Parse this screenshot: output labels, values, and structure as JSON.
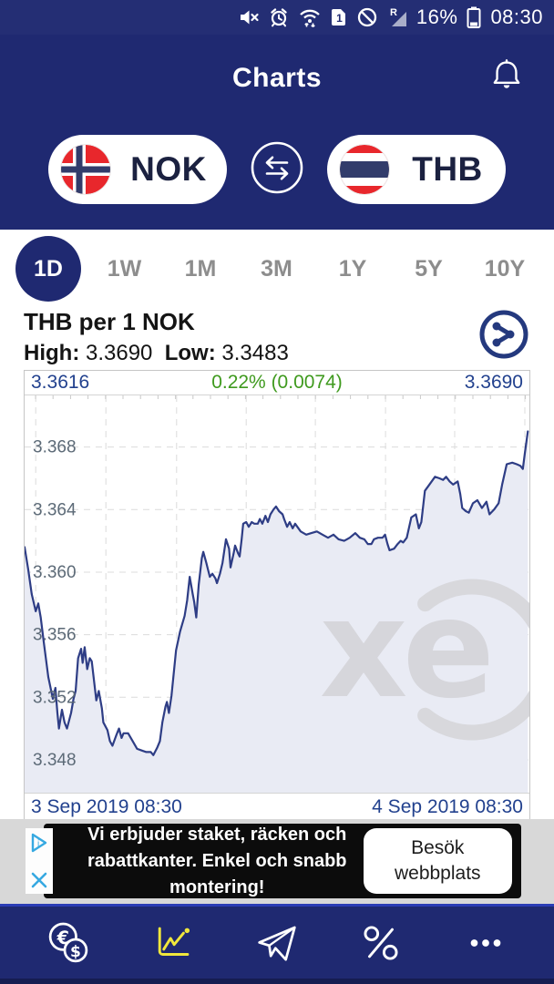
{
  "colors": {
    "navy": "#1f2971",
    "statusbar_navy": "#242e74",
    "active_tab_navy": "#1f2971",
    "value_navy": "#22418e",
    "change_green": "#3f9a1e",
    "line_navy": "#2e3d85",
    "area_fill": "#e9ebf4",
    "nav_active_yellow": "#f0e73c",
    "ad_strip_gray": "#d8d8d8",
    "ad_box_black": "#0c0c0c"
  },
  "status_bar": {
    "icons": [
      "muted-speaker",
      "alarm",
      "wifi-arrows",
      "sim-1",
      "do-not-disturb",
      "roaming-signal"
    ],
    "battery_percent": "16%",
    "time": "08:30"
  },
  "header": {
    "title": "Charts"
  },
  "currency_selector": {
    "base": {
      "code": "NOK",
      "flag": "norway"
    },
    "quote": {
      "code": "THB",
      "flag": "thailand"
    }
  },
  "tabs": [
    {
      "label": "1D",
      "selected": true
    },
    {
      "label": "1W",
      "selected": false
    },
    {
      "label": "1M",
      "selected": false
    },
    {
      "label": "3M",
      "selected": false
    },
    {
      "label": "1Y",
      "selected": false
    },
    {
      "label": "5Y",
      "selected": false
    },
    {
      "label": "10Y",
      "selected": false
    }
  ],
  "chart_info": {
    "title": "THB per 1 NOK",
    "high_label": "High:",
    "high_value": "3.3690",
    "low_label": "Low:",
    "low_value": "3.3483"
  },
  "chart_topbar": {
    "left_value": "3.3616",
    "change": "0.22% (0.0074)",
    "right_value": "3.3690"
  },
  "chart_data": {
    "type": "area",
    "title": "THB per 1 NOK — 1 day",
    "ylabel": "THB per 1 NOK",
    "open": 3.3616,
    "close": 3.369,
    "high": 3.369,
    "low": 3.3483,
    "change_percent": "0.22%",
    "change_abs": "0.0074",
    "ylim": [
      3.3459,
      3.3713
    ],
    "yticks": [
      3.348,
      3.352,
      3.356,
      3.36,
      3.364,
      3.368
    ],
    "ytick_labels": [
      "3.348",
      "3.352",
      "3.356",
      "3.360",
      "3.364",
      "3.368"
    ],
    "x_start_label": "3 Sep 2019 08:30",
    "x_end_label": "4 Sep 2019 08:30",
    "grid": "dashed",
    "legend": "none",
    "watermark": "xe",
    "line_color": "#2e3d85",
    "fill_color": "#e9ebf4",
    "vgrid_fx": [
      0.022,
      0.161,
      0.301,
      0.439,
      0.576,
      0.715,
      0.852,
      0.991
    ],
    "points": [
      [
        0.0,
        3.3616
      ],
      [
        0.007,
        3.3602
      ],
      [
        0.014,
        3.3586
      ],
      [
        0.022,
        3.3575
      ],
      [
        0.027,
        3.358
      ],
      [
        0.032,
        3.3571
      ],
      [
        0.038,
        3.3555
      ],
      [
        0.047,
        3.3533
      ],
      [
        0.056,
        3.3519
      ],
      [
        0.061,
        3.3526
      ],
      [
        0.065,
        3.351
      ],
      [
        0.068,
        3.35
      ],
      [
        0.074,
        3.3512
      ],
      [
        0.079,
        3.3504
      ],
      [
        0.084,
        3.35
      ],
      [
        0.092,
        3.351
      ],
      [
        0.097,
        3.3519
      ],
      [
        0.101,
        3.3524
      ],
      [
        0.106,
        3.3545
      ],
      [
        0.112,
        3.3551
      ],
      [
        0.115,
        3.3542
      ],
      [
        0.119,
        3.3552
      ],
      [
        0.124,
        3.3538
      ],
      [
        0.129,
        3.3545
      ],
      [
        0.133,
        3.3543
      ],
      [
        0.142,
        3.3518
      ],
      [
        0.147,
        3.3524
      ],
      [
        0.153,
        3.3513
      ],
      [
        0.156,
        3.3504
      ],
      [
        0.164,
        3.3499
      ],
      [
        0.169,
        3.3492
      ],
      [
        0.174,
        3.3489
      ],
      [
        0.182,
        3.3496
      ],
      [
        0.187,
        3.35
      ],
      [
        0.192,
        3.3494
      ],
      [
        0.196,
        3.3497
      ],
      [
        0.205,
        3.3497
      ],
      [
        0.214,
        3.3492
      ],
      [
        0.223,
        3.3487
      ],
      [
        0.232,
        3.3486
      ],
      [
        0.241,
        3.3485
      ],
      [
        0.25,
        3.3485
      ],
      [
        0.255,
        3.3483
      ],
      [
        0.263,
        3.3488
      ],
      [
        0.268,
        3.3492
      ],
      [
        0.273,
        3.3504
      ],
      [
        0.279,
        3.3514
      ],
      [
        0.282,
        3.3517
      ],
      [
        0.286,
        3.351
      ],
      [
        0.291,
        3.3521
      ],
      [
        0.3,
        3.355
      ],
      [
        0.308,
        3.3562
      ],
      [
        0.317,
        3.3572
      ],
      [
        0.322,
        3.3582
      ],
      [
        0.327,
        3.3597
      ],
      [
        0.333,
        3.3586
      ],
      [
        0.336,
        3.3581
      ],
      [
        0.34,
        3.3571
      ],
      [
        0.345,
        3.3592
      ],
      [
        0.351,
        3.3609
      ],
      [
        0.354,
        3.3613
      ],
      [
        0.36,
        3.3606
      ],
      [
        0.363,
        3.3602
      ],
      [
        0.367,
        3.3597
      ],
      [
        0.372,
        3.3599
      ],
      [
        0.378,
        3.3596
      ],
      [
        0.381,
        3.3593
      ],
      [
        0.387,
        3.3599
      ],
      [
        0.392,
        3.3606
      ],
      [
        0.399,
        3.3621
      ],
      [
        0.405,
        3.3615
      ],
      [
        0.408,
        3.3603
      ],
      [
        0.414,
        3.3612
      ],
      [
        0.417,
        3.3617
      ],
      [
        0.423,
        3.3612
      ],
      [
        0.426,
        3.361
      ],
      [
        0.43,
        3.3621
      ],
      [
        0.433,
        3.3631
      ],
      [
        0.439,
        3.3632
      ],
      [
        0.444,
        3.3629
      ],
      [
        0.45,
        3.3632
      ],
      [
        0.455,
        3.3631
      ],
      [
        0.462,
        3.3631
      ],
      [
        0.466,
        3.3634
      ],
      [
        0.471,
        3.3631
      ],
      [
        0.477,
        3.3636
      ],
      [
        0.482,
        3.3632
      ],
      [
        0.487,
        3.3637
      ],
      [
        0.493,
        3.364
      ],
      [
        0.498,
        3.3642
      ],
      [
        0.504,
        3.3639
      ],
      [
        0.511,
        3.3637
      ],
      [
        0.514,
        3.3634
      ],
      [
        0.52,
        3.3629
      ],
      [
        0.525,
        3.3632
      ],
      [
        0.531,
        3.3628
      ],
      [
        0.536,
        3.3631
      ],
      [
        0.547,
        3.3626
      ],
      [
        0.558,
        3.3624
      ],
      [
        0.568,
        3.3625
      ],
      [
        0.579,
        3.3626
      ],
      [
        0.59,
        3.3624
      ],
      [
        0.601,
        3.3622
      ],
      [
        0.612,
        3.3624
      ],
      [
        0.622,
        3.3621
      ],
      [
        0.633,
        3.362
      ],
      [
        0.644,
        3.3622
      ],
      [
        0.655,
        3.3625
      ],
      [
        0.664,
        3.3622
      ],
      [
        0.673,
        3.3621
      ],
      [
        0.68,
        3.3618
      ],
      [
        0.687,
        3.3618
      ],
      [
        0.692,
        3.3621
      ],
      [
        0.7,
        3.3622
      ],
      [
        0.709,
        3.3622
      ],
      [
        0.714,
        3.3624
      ],
      [
        0.719,
        3.3618
      ],
      [
        0.723,
        3.3614
      ],
      [
        0.732,
        3.3615
      ],
      [
        0.739,
        3.3618
      ],
      [
        0.745,
        3.362
      ],
      [
        0.75,
        3.3619
      ],
      [
        0.757,
        3.3622
      ],
      [
        0.766,
        3.3635
      ],
      [
        0.775,
        3.3637
      ],
      [
        0.781,
        3.3628
      ],
      [
        0.786,
        3.3632
      ],
      [
        0.793,
        3.3652
      ],
      [
        0.802,
        3.3656
      ],
      [
        0.813,
        3.3661
      ],
      [
        0.822,
        3.366
      ],
      [
        0.829,
        3.3659
      ],
      [
        0.835,
        3.3661
      ],
      [
        0.842,
        3.3658
      ],
      [
        0.849,
        3.3656
      ],
      [
        0.858,
        3.3658
      ],
      [
        0.863,
        3.365
      ],
      [
        0.867,
        3.3641
      ],
      [
        0.874,
        3.3639
      ],
      [
        0.88,
        3.3638
      ],
      [
        0.888,
        3.3644
      ],
      [
        0.897,
        3.3646
      ],
      [
        0.906,
        3.3641
      ],
      [
        0.915,
        3.3645
      ],
      [
        0.921,
        3.3637
      ],
      [
        0.93,
        3.364
      ],
      [
        0.939,
        3.3644
      ],
      [
        0.946,
        3.3656
      ],
      [
        0.955,
        3.3669
      ],
      [
        0.966,
        3.367
      ],
      [
        0.975,
        3.3669
      ],
      [
        0.982,
        3.3668
      ],
      [
        0.987,
        3.3666
      ],
      [
        0.991,
        3.3676
      ],
      [
        0.997,
        3.369
      ]
    ]
  },
  "ad": {
    "text": "Vi erbjuder staket, räcken och rabattkanter. Enkel och snabb montering!",
    "button_label": "Besök webbplats"
  },
  "bottom_nav": {
    "active": "charts",
    "items": [
      "currency-converter",
      "charts",
      "send",
      "rates",
      "more"
    ]
  }
}
